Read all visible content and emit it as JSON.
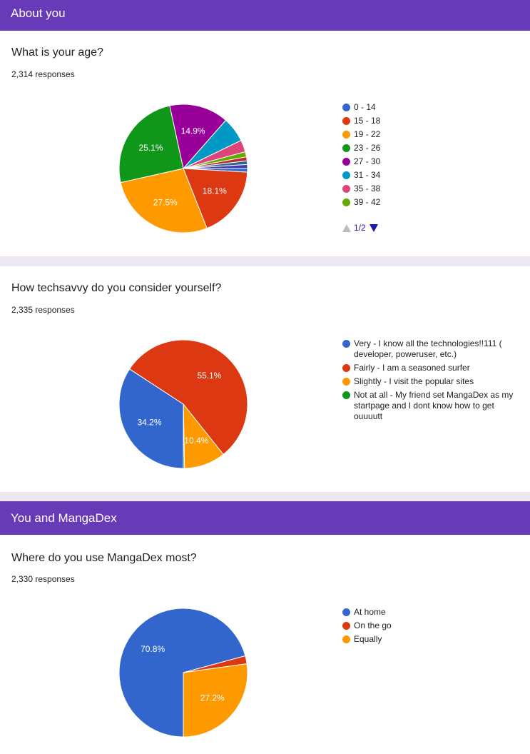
{
  "sections": {
    "about": "About you",
    "mangadex": "You and MangaDex"
  },
  "questions": {
    "age": {
      "title": "What is your age?",
      "responses": "2,314 responses"
    },
    "tech": {
      "title": "How techsavvy do you consider yourself?",
      "responses": "2,335 responses"
    },
    "use": {
      "title": "Where do you use MangaDex most?",
      "responses": "2,330 responses"
    }
  },
  "pager": {
    "text": "1/2"
  },
  "chart_data": [
    {
      "type": "pie",
      "title": "What is your age?",
      "start_angle_deg": 0,
      "slices": [
        {
          "label": "0 - 14",
          "value": 0.9,
          "color": "#3366cc",
          "display": ""
        },
        {
          "label": "15 - 18",
          "value": 18.1,
          "color": "#dc3912",
          "display": "18.1%"
        },
        {
          "label": "19 - 22",
          "value": 27.5,
          "color": "#ff9900",
          "display": "27.5%"
        },
        {
          "label": "23 - 26",
          "value": 25.1,
          "color": "#109618",
          "display": "25.1%"
        },
        {
          "label": "27 - 30",
          "value": 14.9,
          "color": "#990099",
          "display": "14.9%"
        },
        {
          "label": "31 - 34",
          "value": 6.3,
          "color": "#0099c6",
          "display": ""
        },
        {
          "label": "35 - 38",
          "value": 3.0,
          "color": "#dd4477",
          "display": ""
        },
        {
          "label": "39 - 42",
          "value": 1.3,
          "color": "#66aa00",
          "display": ""
        },
        {
          "label": "",
          "value": 1.0,
          "color": "#b82e2e",
          "display": ""
        },
        {
          "label": "",
          "value": 0.9,
          "color": "#316395",
          "display": ""
        },
        {
          "label": "",
          "value": 1.0,
          "color": "#3b3eac",
          "display": ""
        }
      ]
    },
    {
      "type": "pie",
      "title": "How techsavvy do you consider yourself?",
      "start_angle_deg": 90,
      "slices": [
        {
          "label": "Very - I know all the technologies!!111 ( developer, poweruser, etc.)",
          "value": 34.2,
          "color": "#3366cc",
          "display": "34.2%"
        },
        {
          "label": "Fairly - I am a seasoned surfer",
          "value": 55.1,
          "color": "#dc3912",
          "display": "55.1%"
        },
        {
          "label": "Slightly - I visit the popular sites",
          "value": 10.4,
          "color": "#ff9900",
          "display": "10.4%"
        },
        {
          "label": "Not at all - My friend set MangaDex as my startpage and I dont know how to get ouuuutt",
          "value": 0.3,
          "color": "#109618",
          "display": ""
        }
      ]
    },
    {
      "type": "pie",
      "title": "Where do you use MangaDex most?",
      "start_angle_deg": 90,
      "slices": [
        {
          "label": "At home",
          "value": 70.8,
          "color": "#3366cc",
          "display": "70.8%"
        },
        {
          "label": "On the go",
          "value": 2.0,
          "color": "#dc3912",
          "display": ""
        },
        {
          "label": "Equally",
          "value": 27.2,
          "color": "#ff9900",
          "display": "27.2%"
        }
      ]
    }
  ]
}
